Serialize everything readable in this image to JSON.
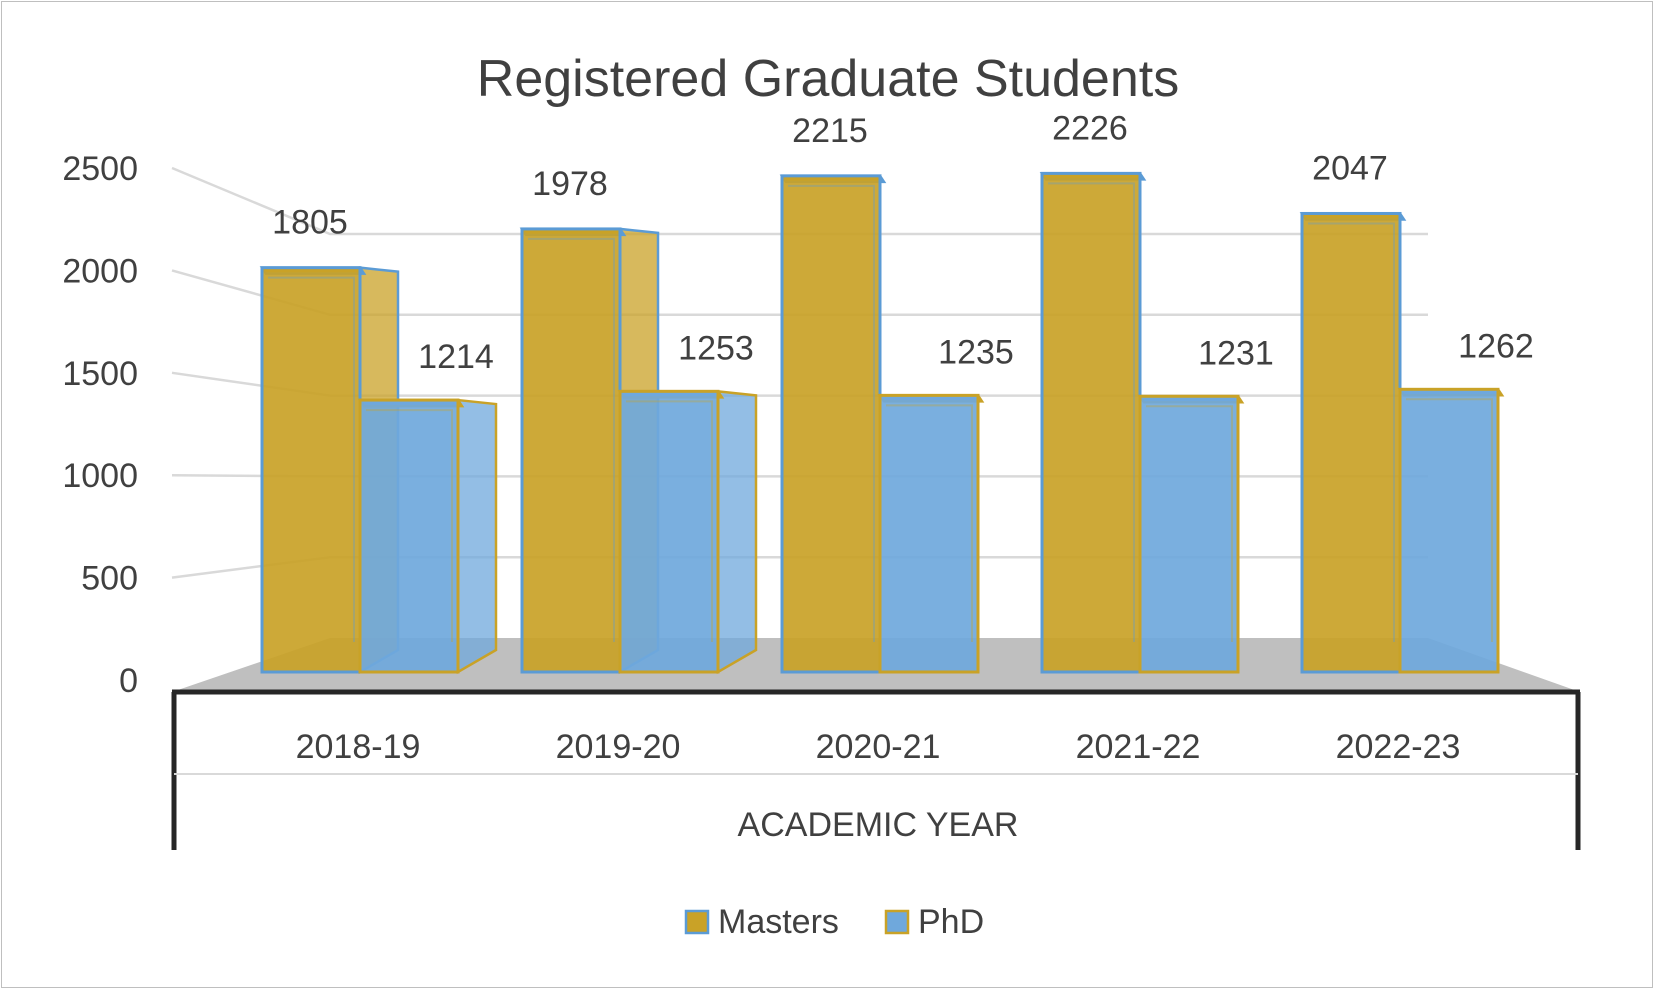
{
  "chart_data": {
    "type": "bar",
    "title": "Registered Graduate Students",
    "xlabel": "ACADEMIC YEAR",
    "ylabel": "",
    "ylim": [
      0,
      2500
    ],
    "yticks": [
      0,
      500,
      1000,
      1500,
      2000,
      2500
    ],
    "categories": [
      "2018-19",
      "2019-20",
      "2020-21",
      "2021-22",
      "2022-23"
    ],
    "series": [
      {
        "name": "Masters",
        "values": [
          1805,
          1978,
          2215,
          2226,
          2047
        ]
      },
      {
        "name": "PhD",
        "values": [
          1214,
          1253,
          1235,
          1231,
          1262
        ]
      }
    ],
    "grid": true,
    "legend": "bottom",
    "three_d": true,
    "colors": {
      "masters_fill": "#C9A227",
      "masters_edge": "#5B9BD5",
      "phd_fill": "#6FA8DC",
      "phd_edge": "#C9A227",
      "floor": "#BFBFBF",
      "grid": "#D9D9D9",
      "axis": "#262626",
      "text": "#404040"
    }
  }
}
